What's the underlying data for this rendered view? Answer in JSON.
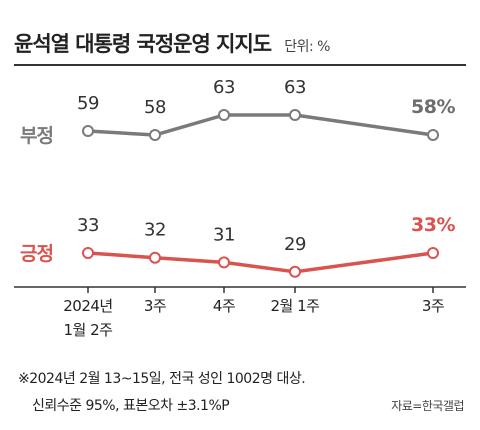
{
  "header": {
    "title": "윤석열 대통령 국정운영 지지도",
    "unit": "단위: %"
  },
  "chart_data": {
    "type": "line",
    "categories": [
      "2024년\n1월 2주",
      "3주",
      "4주",
      "2월 1주",
      "3주"
    ],
    "series": [
      {
        "name": "부정",
        "values": [
          59,
          58,
          63,
          63,
          58
        ],
        "labels": [
          "59",
          "58",
          "63",
          "63",
          "58%"
        ],
        "color": "#7a7a7a"
      },
      {
        "name": "긍정",
        "values": [
          33,
          32,
          31,
          29,
          33
        ],
        "labels": [
          "33",
          "32",
          "31",
          "29",
          "33%"
        ],
        "color": "#d9534f"
      }
    ],
    "label_color_last_positive": "#d9534f",
    "label_color_last_negative": "#6e6e6e",
    "label_color_default": "#333333"
  },
  "footnote": {
    "line1": "※2024년 2월 13~15일, 전국 성인 1002명 대상.",
    "line2": "신뢰수준 95%, 표본오차 ±3.1%P"
  },
  "source": "자료=한국갤럽"
}
